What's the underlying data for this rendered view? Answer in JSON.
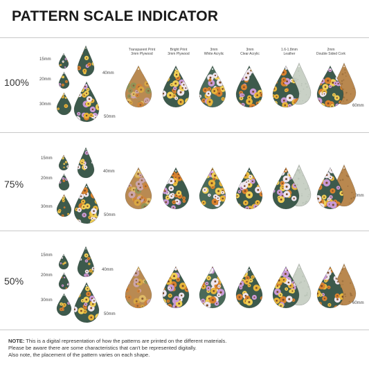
{
  "title": "PATTERN SCALE INDICATOR",
  "materials": [
    {
      "line1": "Transparent Print",
      "line2": "3mm Plywood"
    },
    {
      "line1": "Bright Print",
      "line2": "3mm Plywood"
    },
    {
      "line1": "3mm",
      "line2": "White Acrylic"
    },
    {
      "line1": "3mm",
      "line2": "Clear Acrylic"
    },
    {
      "line1": "1.6-1.8mm",
      "line2": "Leather"
    },
    {
      "line1": "2mm",
      "line2": "Double Sided Cork"
    }
  ],
  "sections": [
    {
      "scale": "100%",
      "s15": "15mm",
      "s20": "20mm",
      "s30": "30mm",
      "s40": "40mm",
      "s50": "50mm",
      "s60": "60mm"
    },
    {
      "scale": "75%",
      "s15": "15mm",
      "s20": "20mm",
      "s30": "30mm",
      "s40": "40mm",
      "s50": "50mm",
      "s60": "60mm"
    },
    {
      "scale": "50%",
      "s15": "15mm",
      "s20": "20mm",
      "s30": "30mm",
      "s40": "40mm",
      "s50": "50mm",
      "s60": "60mm"
    }
  ],
  "note": {
    "label": "NOTE:",
    "line1": " This is a digital representation of how the patterns are printed on the different materials.",
    "line2": "Please be aware there are some characteristics that can't be represented digitally.",
    "line3": "Also note, the placement of the pattern varies on each shape."
  },
  "colors": {
    "floral_bg": "#3d5a4c",
    "flower_pink": "#c99ad6",
    "flower_yellow": "#e8b53a",
    "flower_orange": "#d9822e",
    "flower_white": "#efe6ef",
    "plywood": "#b98a52",
    "leather": "#c9d1c6",
    "cork": "#b9884f"
  }
}
